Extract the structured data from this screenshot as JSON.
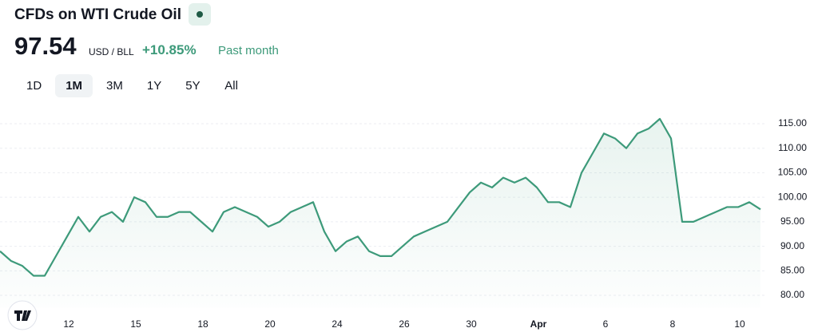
{
  "header": {
    "title": "CFDs on WTI Crude Oil",
    "price": "97.54",
    "unit": "USD / BLL",
    "change": "+10.85%",
    "period": "Past month"
  },
  "ranges": [
    "1D",
    "1M",
    "3M",
    "1Y",
    "5Y",
    "All"
  ],
  "chart_data": {
    "type": "line",
    "categories": [
      null,
      null,
      null,
      null,
      null,
      null,
      "12",
      null,
      null,
      null,
      null,
      null,
      "15",
      null,
      null,
      null,
      null,
      null,
      "18",
      null,
      null,
      null,
      null,
      null,
      "20",
      null,
      null,
      null,
      null,
      null,
      "24",
      null,
      null,
      null,
      null,
      null,
      "26",
      null,
      null,
      null,
      null,
      null,
      "30",
      null,
      null,
      null,
      null,
      null,
      "Apr",
      null,
      null,
      null,
      null,
      null,
      "6",
      null,
      null,
      null,
      null,
      null,
      "8",
      null,
      null,
      null,
      null,
      null,
      "10",
      null,
      null
    ],
    "series": [
      {
        "color": "#3d9a7a",
        "values": [
          89,
          87,
          86,
          84,
          84,
          88,
          92,
          96,
          93,
          96,
          97,
          95,
          100,
          99,
          96,
          96,
          97,
          97,
          95,
          93,
          97,
          98,
          97,
          96,
          94,
          95,
          97,
          98,
          99,
          93,
          89,
          91,
          92,
          89,
          88,
          88,
          90,
          92,
          93,
          94,
          95,
          98,
          101,
          103,
          102,
          104,
          103,
          104,
          102,
          99,
          99,
          98,
          105,
          109,
          113,
          112,
          110,
          113,
          114,
          116,
          112,
          95,
          95,
          96,
          97,
          98,
          98,
          99,
          97.54
        ]
      }
    ],
    "ylim": [
      77.5,
      120
    ],
    "yticks": [
      {
        "value": 80,
        "label": "80.00"
      },
      {
        "value": 85,
        "label": "85.00"
      },
      {
        "value": 90,
        "label": "90.00"
      },
      {
        "value": 95,
        "label": "95.00"
      },
      {
        "value": 100,
        "label": "100.00"
      },
      {
        "value": 105,
        "label": "105.00"
      },
      {
        "value": 110,
        "label": "110.00"
      },
      {
        "value": 115,
        "label": "115.00"
      }
    ],
    "grid": true
  }
}
